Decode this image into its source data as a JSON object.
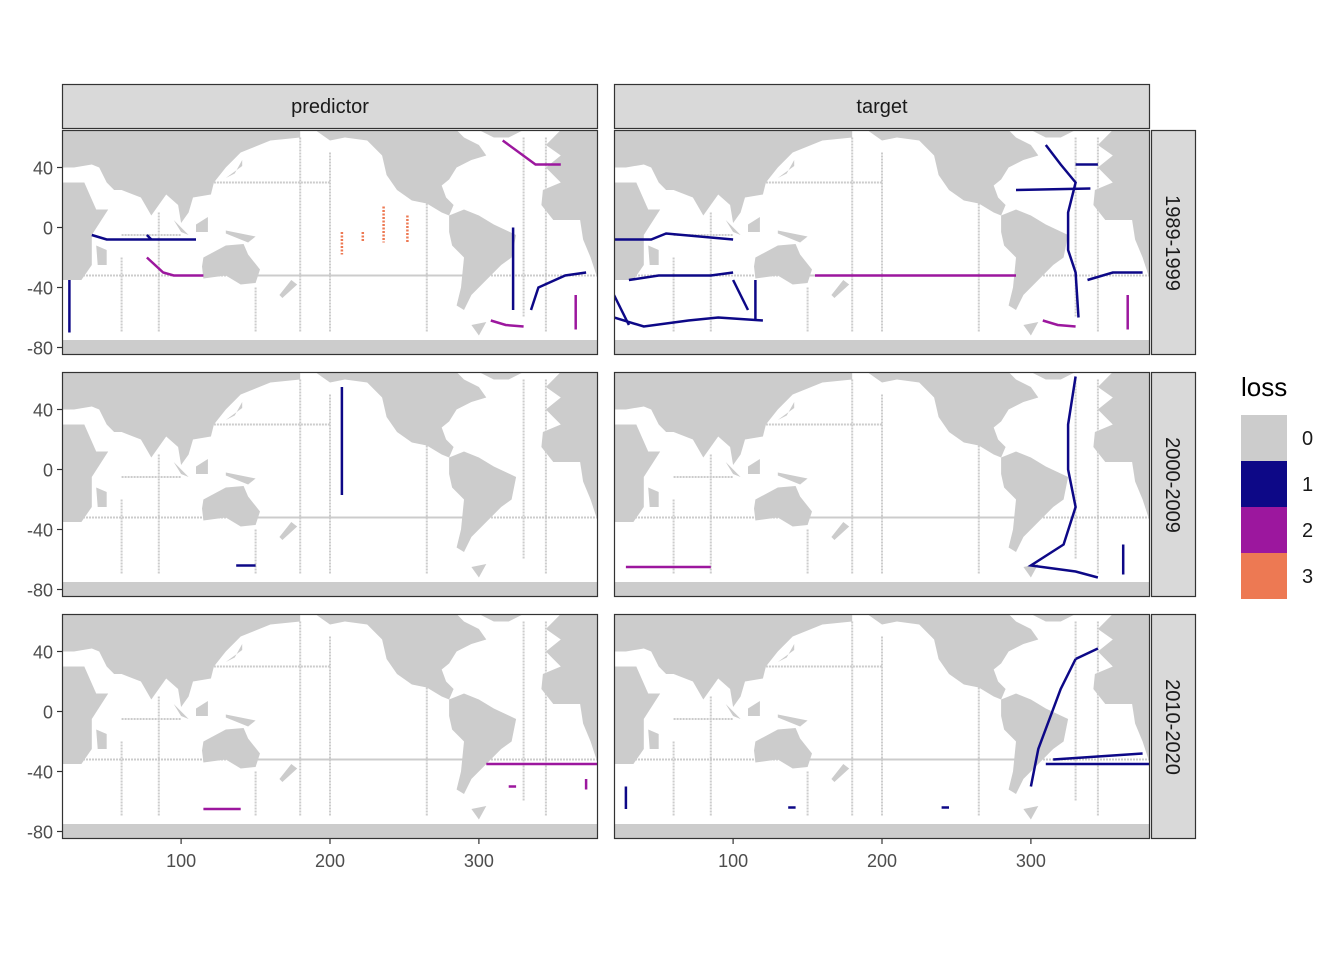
{
  "chart_data": {
    "type": "heatmap",
    "facet_columns": [
      "predictor",
      "target"
    ],
    "facet_rows": [
      "1989-1999",
      "2000-2009",
      "2010-2020"
    ],
    "x_ticks": [
      100,
      200,
      300
    ],
    "y_ticks": [
      40,
      0,
      -40,
      -80
    ],
    "xlim": [
      20,
      380
    ],
    "ylim": [
      -85,
      65
    ],
    "legend": {
      "title": "loss",
      "position": "right",
      "entries": [
        {
          "label": "0",
          "color": "#cccccc"
        },
        {
          "label": "1",
          "color": "#0d0887"
        },
        {
          "label": "2",
          "color": "#9c179e"
        },
        {
          "label": "3",
          "color": "#ed7953"
        }
      ]
    },
    "colors": {
      "land": "#cccccc",
      "ocean": "#ffffff",
      "strip": "#d9d9d9",
      "border": "#333333"
    },
    "tracks": [
      {
        "column": "predictor",
        "period": "1989-1999",
        "loss": 1,
        "points": [
          [
            40,
            -5
          ],
          [
            50,
            -8
          ],
          [
            110,
            -8
          ]
        ]
      },
      {
        "column": "predictor",
        "period": "1989-1999",
        "loss": 1,
        "points": [
          [
            77,
            -5
          ],
          [
            80,
            -8
          ]
        ]
      },
      {
        "column": "predictor",
        "period": "1989-1999",
        "loss": 2,
        "points": [
          [
            77,
            -20
          ],
          [
            88,
            -30
          ],
          [
            95,
            -32
          ],
          [
            115,
            -32
          ]
        ]
      },
      {
        "column": "predictor",
        "period": "1989-1999",
        "loss": 2,
        "points": [
          [
            316,
            58
          ],
          [
            338,
            42
          ],
          [
            355,
            42
          ]
        ]
      },
      {
        "column": "predictor",
        "period": "1989-1999",
        "loss": 3,
        "points": [
          [
            208,
            -3
          ],
          [
            208,
            -18
          ]
        ]
      },
      {
        "column": "predictor",
        "period": "1989-1999",
        "loss": 3,
        "points": [
          [
            222,
            -3
          ],
          [
            222,
            -10
          ]
        ]
      },
      {
        "column": "predictor",
        "period": "1989-1999",
        "loss": 3,
        "points": [
          [
            236,
            14
          ],
          [
            236,
            -10
          ]
        ]
      },
      {
        "column": "predictor",
        "period": "1989-1999",
        "loss": 3,
        "points": [
          [
            252,
            8
          ],
          [
            252,
            -10
          ]
        ]
      },
      {
        "column": "predictor",
        "period": "1989-1999",
        "loss": 1,
        "points": [
          [
            323,
            0
          ],
          [
            323,
            -55
          ]
        ]
      },
      {
        "column": "predictor",
        "period": "1989-1999",
        "loss": 1,
        "points": [
          [
            335,
            -55
          ],
          [
            340,
            -40
          ],
          [
            358,
            -32
          ],
          [
            372,
            -30
          ]
        ]
      },
      {
        "column": "predictor",
        "period": "1989-1999",
        "loss": 1,
        "points": [
          [
            25,
            -35
          ],
          [
            25,
            -70
          ]
        ]
      },
      {
        "column": "predictor",
        "period": "1989-1999",
        "loss": 2,
        "points": [
          [
            365,
            -45
          ],
          [
            365,
            -68
          ]
        ]
      },
      {
        "column": "predictor",
        "period": "1989-1999",
        "loss": 2,
        "points": [
          [
            308,
            -62
          ],
          [
            318,
            -65
          ],
          [
            330,
            -66
          ]
        ]
      },
      {
        "column": "target",
        "period": "1989-1999",
        "loss": 1,
        "points": [
          [
            310,
            55
          ],
          [
            320,
            42
          ],
          [
            330,
            30
          ],
          [
            325,
            10
          ],
          [
            325,
            -15
          ],
          [
            330,
            -30
          ],
          [
            332,
            -60
          ]
        ]
      },
      {
        "column": "target",
        "period": "1989-1999",
        "loss": 1,
        "points": [
          [
            290,
            25
          ],
          [
            340,
            26
          ]
        ]
      },
      {
        "column": "target",
        "period": "1989-1999",
        "loss": 1,
        "points": [
          [
            330,
            42
          ],
          [
            345,
            42
          ]
        ]
      },
      {
        "column": "target",
        "period": "1989-1999",
        "loss": 1,
        "points": [
          [
            20,
            -8
          ],
          [
            30,
            -8
          ],
          [
            45,
            -8
          ],
          [
            55,
            -4
          ],
          [
            100,
            -8
          ]
        ]
      },
      {
        "column": "target",
        "period": "1989-1999",
        "loss": 1,
        "points": [
          [
            30,
            -35
          ],
          [
            50,
            -32
          ],
          [
            85,
            -32
          ],
          [
            100,
            -30
          ]
        ]
      },
      {
        "column": "target",
        "period": "1989-1999",
        "loss": 1,
        "points": [
          [
            20,
            -45
          ],
          [
            30,
            -65
          ]
        ]
      },
      {
        "column": "target",
        "period": "1989-1999",
        "loss": 1,
        "points": [
          [
            20,
            -60
          ],
          [
            40,
            -66
          ],
          [
            70,
            -62
          ],
          [
            90,
            -60
          ],
          [
            120,
            -62
          ]
        ]
      },
      {
        "column": "target",
        "period": "1989-1999",
        "loss": 1,
        "points": [
          [
            100,
            -35
          ],
          [
            110,
            -55
          ]
        ]
      },
      {
        "column": "target",
        "period": "1989-1999",
        "loss": 1,
        "points": [
          [
            115,
            -35
          ],
          [
            115,
            -62
          ]
        ]
      },
      {
        "column": "target",
        "period": "1989-1999",
        "loss": 1,
        "points": [
          [
            338,
            -35
          ],
          [
            355,
            -30
          ],
          [
            375,
            -30
          ]
        ]
      },
      {
        "column": "target",
        "period": "1989-1999",
        "loss": 2,
        "points": [
          [
            155,
            -32
          ],
          [
            290,
            -32
          ]
        ]
      },
      {
        "column": "target",
        "period": "1989-1999",
        "loss": 2,
        "points": [
          [
            308,
            -62
          ],
          [
            318,
            -65
          ],
          [
            330,
            -66
          ]
        ]
      },
      {
        "column": "target",
        "period": "1989-1999",
        "loss": 2,
        "points": [
          [
            365,
            -45
          ],
          [
            365,
            -68
          ]
        ]
      },
      {
        "column": "predictor",
        "period": "2000-2009",
        "loss": 1,
        "points": [
          [
            208,
            55
          ],
          [
            208,
            -17
          ]
        ]
      },
      {
        "column": "predictor",
        "period": "2000-2009",
        "loss": 1,
        "points": [
          [
            137,
            -64
          ],
          [
            150,
            -64
          ]
        ]
      },
      {
        "column": "target",
        "period": "2000-2009",
        "loss": 1,
        "points": [
          [
            330,
            62
          ],
          [
            325,
            30
          ],
          [
            325,
            0
          ],
          [
            330,
            -25
          ],
          [
            322,
            -50
          ],
          [
            300,
            -64
          ],
          [
            330,
            -68
          ],
          [
            345,
            -72
          ]
        ]
      },
      {
        "column": "target",
        "period": "2000-2009",
        "loss": 1,
        "points": [
          [
            362,
            -50
          ],
          [
            362,
            -70
          ]
        ]
      },
      {
        "column": "target",
        "period": "2000-2009",
        "loss": 2,
        "points": [
          [
            28,
            -65
          ],
          [
            85,
            -65
          ]
        ]
      },
      {
        "column": "predictor",
        "period": "2010-2020",
        "loss": 2,
        "points": [
          [
            305,
            -35
          ],
          [
            380,
            -35
          ]
        ]
      },
      {
        "column": "predictor",
        "period": "2010-2020",
        "loss": 2,
        "points": [
          [
            320,
            -50
          ],
          [
            325,
            -50
          ]
        ]
      },
      {
        "column": "predictor",
        "period": "2010-2020",
        "loss": 2,
        "points": [
          [
            372,
            -45
          ],
          [
            372,
            -52
          ]
        ]
      },
      {
        "column": "predictor",
        "period": "2010-2020",
        "loss": 2,
        "points": [
          [
            115,
            -65
          ],
          [
            140,
            -65
          ]
        ]
      },
      {
        "column": "target",
        "period": "2010-2020",
        "loss": 1,
        "points": [
          [
            310,
            -35
          ],
          [
            380,
            -35
          ]
        ]
      },
      {
        "column": "target",
        "period": "2010-2020",
        "loss": 1,
        "points": [
          [
            330,
            35
          ],
          [
            320,
            15
          ],
          [
            305,
            -25
          ],
          [
            300,
            -50
          ]
        ]
      },
      {
        "column": "target",
        "period": "2010-2020",
        "loss": 1,
        "points": [
          [
            315,
            -32
          ],
          [
            375,
            -28
          ]
        ]
      },
      {
        "column": "target",
        "period": "2010-2020",
        "loss": 1,
        "points": [
          [
            330,
            35
          ],
          [
            345,
            42
          ]
        ]
      },
      {
        "column": "target",
        "period": "2010-2020",
        "loss": 1,
        "points": [
          [
            28,
            -50
          ],
          [
            28,
            -65
          ]
        ]
      },
      {
        "column": "target",
        "period": "2010-2020",
        "loss": 1,
        "points": [
          [
            137,
            -64
          ],
          [
            142,
            -64
          ]
        ]
      },
      {
        "column": "target",
        "period": "2010-2020",
        "loss": 1,
        "points": [
          [
            240,
            -64
          ],
          [
            245,
            -64
          ]
        ]
      }
    ]
  }
}
